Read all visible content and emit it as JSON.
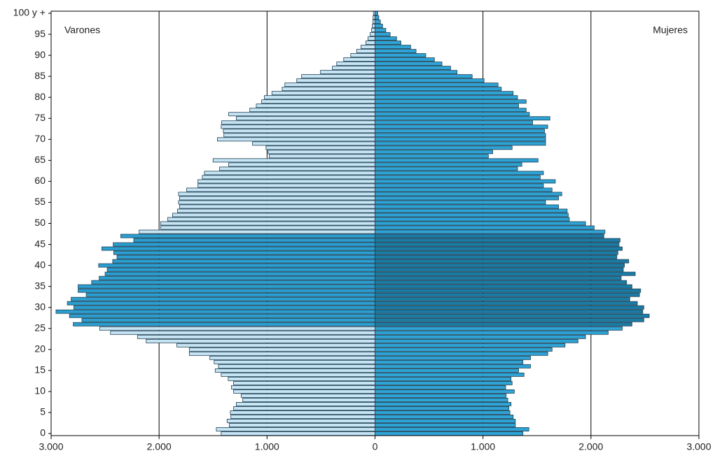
{
  "chart_data": {
    "type": "pyramid",
    "categories": [
      "0",
      null,
      null,
      null,
      null,
      "5",
      null,
      null,
      null,
      null,
      "10",
      null,
      null,
      null,
      null,
      "15",
      null,
      null,
      null,
      null,
      "20",
      null,
      null,
      null,
      null,
      "25",
      null,
      null,
      null,
      null,
      "30",
      null,
      null,
      null,
      null,
      "35",
      null,
      null,
      null,
      null,
      "40",
      null,
      null,
      null,
      null,
      "45",
      null,
      null,
      null,
      null,
      "50",
      null,
      null,
      null,
      null,
      "55",
      null,
      null,
      null,
      null,
      "60",
      null,
      null,
      null,
      null,
      "65",
      null,
      null,
      null,
      null,
      "70",
      null,
      null,
      null,
      null,
      "75",
      null,
      null,
      null,
      null,
      "80",
      null,
      null,
      null,
      null,
      "85",
      null,
      null,
      null,
      null,
      "90",
      null,
      null,
      null,
      null,
      "95",
      null,
      null,
      null,
      null,
      "100 y +"
    ],
    "series": [
      {
        "name": "Varones",
        "side": "left",
        "color": "#c6e4f4",
        "highlight_color": "#2b9fd1",
        "highlight_range": [
          26,
          47
        ],
        "values": [
          1425,
          1470,
          1350,
          1370,
          1335,
          1340,
          1310,
          1285,
          1225,
          1240,
          1310,
          1330,
          1310,
          1360,
          1425,
          1480,
          1450,
          1490,
          1530,
          1720,
          1720,
          1835,
          2120,
          2200,
          2450,
          2550,
          2795,
          2715,
          2830,
          2955,
          2790,
          2850,
          2815,
          2675,
          2750,
          2750,
          2625,
          2555,
          2500,
          2480,
          2560,
          2430,
          2390,
          2420,
          2530,
          2425,
          2235,
          2355,
          2185,
          1985,
          1985,
          1920,
          1875,
          1830,
          1810,
          1820,
          1810,
          1820,
          1745,
          1640,
          1640,
          1600,
          1580,
          1440,
          1355,
          1500,
          980,
          990,
          1010,
          1135,
          1460,
          1400,
          1405,
          1425,
          1420,
          1285,
          1355,
          1160,
          1100,
          1050,
          1025,
          955,
          860,
          835,
          725,
          680,
          505,
          395,
          355,
          290,
          225,
          170,
          130,
          85,
          65,
          45,
          32,
          25,
          20,
          18,
          15
        ]
      },
      {
        "name": "Mujeres",
        "side": "right",
        "color": "#2ea3d5",
        "highlight_color": "#1b7ca5",
        "highlight_range": [
          26,
          47
        ],
        "values": [
          1370,
          1425,
          1300,
          1300,
          1280,
          1250,
          1240,
          1260,
          1230,
          1215,
          1290,
          1210,
          1270,
          1260,
          1380,
          1330,
          1440,
          1370,
          1440,
          1600,
          1640,
          1760,
          1880,
          1950,
          2160,
          2290,
          2380,
          2490,
          2540,
          2480,
          2490,
          2430,
          2360,
          2450,
          2460,
          2380,
          2330,
          2280,
          2410,
          2300,
          2310,
          2350,
          2240,
          2250,
          2290,
          2260,
          2270,
          2120,
          2130,
          2030,
          1950,
          1800,
          1790,
          1780,
          1700,
          1580,
          1700,
          1730,
          1640,
          1560,
          1670,
          1530,
          1560,
          1320,
          1360,
          1510,
          1050,
          1090,
          1270,
          1580,
          1580,
          1580,
          1570,
          1600,
          1460,
          1620,
          1430,
          1400,
          1330,
          1400,
          1320,
          1280,
          1170,
          1140,
          1010,
          900,
          760,
          700,
          620,
          550,
          470,
          380,
          330,
          240,
          200,
          140,
          100,
          70,
          50,
          35,
          25
        ]
      }
    ],
    "xlim": [
      -3000,
      3000
    ],
    "xticks": [
      {
        "value": -3000,
        "label": "3.000"
      },
      {
        "value": -2000,
        "label": "2.000"
      },
      {
        "value": -1000,
        "label": "1.000"
      },
      0,
      {
        "value": 1000,
        "label": "1.000"
      },
      {
        "value": 2000,
        "label": "2.000"
      },
      {
        "value": 3000,
        "label": "3.000"
      }
    ],
    "grid": true
  }
}
